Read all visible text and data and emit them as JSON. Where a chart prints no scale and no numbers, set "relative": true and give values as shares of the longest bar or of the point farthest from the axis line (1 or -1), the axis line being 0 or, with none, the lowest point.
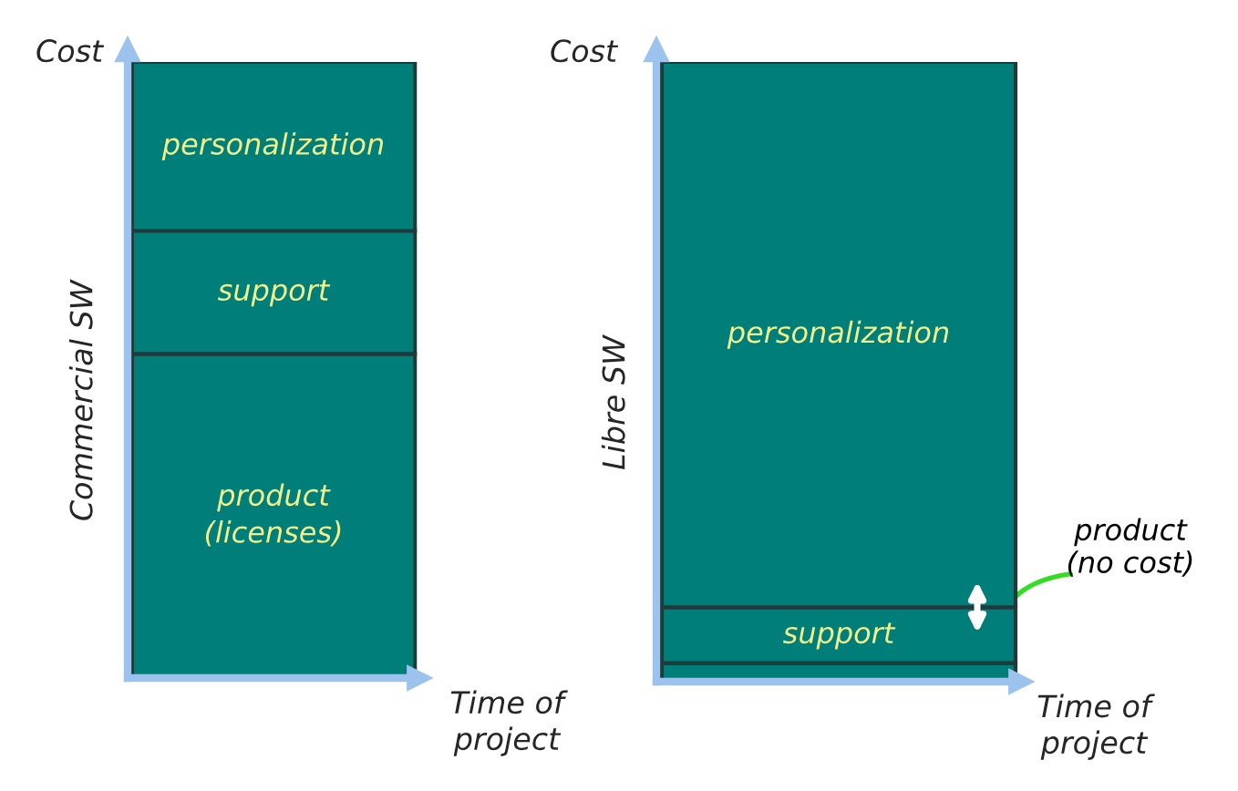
{
  "chart_data": [
    {
      "type": "bar",
      "stacked": true,
      "relative": true,
      "title": "Commercial SW",
      "xlabel": "Time of project",
      "ylabel": "Cost",
      "categories": [
        null
      ],
      "series": [
        {
          "name": "product (licenses)",
          "color": "#007f7a",
          "values": [
            0.526
          ]
        },
        {
          "name": "support",
          "color": "#007f7a",
          "values": [
            0.2
          ]
        },
        {
          "name": "personalization",
          "color": "#007f7a",
          "values": [
            0.274
          ]
        }
      ]
    },
    {
      "type": "bar",
      "stacked": true,
      "relative": true,
      "title": "Libre SW",
      "xlabel": "Time of project",
      "ylabel": "Cost",
      "categories": [
        null
      ],
      "series": [
        {
          "name": "product (no cost)",
          "color": "#007f7a",
          "values": [
            0.03
          ]
        },
        {
          "name": "support",
          "color": "#007f7a",
          "values": [
            0.09
          ]
        },
        {
          "name": "personalization",
          "color": "#007f7a",
          "values": [
            0.88
          ]
        }
      ]
    }
  ]
}
